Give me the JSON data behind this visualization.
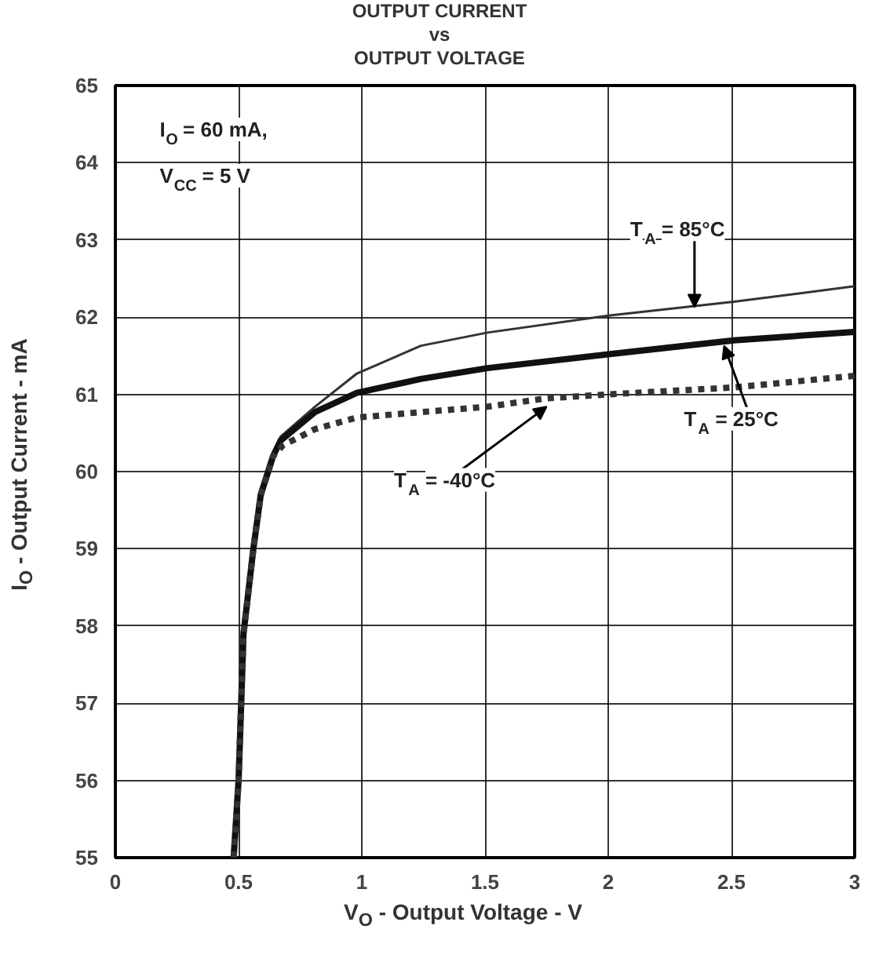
{
  "chart_data": {
    "type": "line",
    "title": "OUTPUT CURRENT\nvs\nOUTPUT VOLTAGE",
    "xlabel": "V$_{O}$ - Output Voltage - V",
    "ylabel": "I$_{O}$ - Output Current - mA",
    "xlim": [
      0,
      3
    ],
    "ylim": [
      55,
      65
    ],
    "xticks": [
      0,
      0.5,
      1,
      1.5,
      2,
      2.5,
      3
    ],
    "yticks": [
      55,
      56,
      57,
      58,
      59,
      60,
      61,
      62,
      63,
      64,
      65
    ],
    "grid": true,
    "series": [
      {
        "color": "#333333",
        "line_style": "solid",
        "x": [
          0.48,
          0.5,
          0.52,
          0.56,
          0.59,
          0.64,
          0.67,
          0.81,
          0.98,
          1.24,
          1.51,
          2.0,
          2.51,
          3.0
        ],
        "values": [
          55,
          56,
          57.9,
          59.0,
          59.7,
          60.2,
          60.45,
          60.84,
          61.27,
          61.63,
          61.8,
          62.02,
          62.2,
          62.4
        ]
      },
      {
        "color": "#111111",
        "line_style": "solid",
        "x": [
          0.48,
          0.5,
          0.52,
          0.56,
          0.59,
          0.64,
          0.67,
          0.81,
          0.98,
          1.24,
          1.51,
          2.0,
          2.51,
          3.0
        ],
        "values": [
          55,
          56,
          57.9,
          59.0,
          59.7,
          60.2,
          60.4,
          60.77,
          61.02,
          61.2,
          61.34,
          61.52,
          61.7,
          61.81
        ]
      },
      {
        "color": "#333333",
        "line_style": "dotted",
        "x": [
          0.48,
          0.5,
          0.52,
          0.56,
          0.59,
          0.64,
          0.68,
          0.81,
          0.98,
          1.24,
          1.51,
          1.75,
          2.0,
          2.51,
          3.0
        ],
        "values": [
          55,
          56,
          57.9,
          59.0,
          59.7,
          60.2,
          60.34,
          60.55,
          60.7,
          60.77,
          60.84,
          60.95,
          61.0,
          61.09,
          61.24
        ]
      }
    ],
    "annotations": [
      "I$_{O}$ = 60 mA,",
      "V$_{CC}$ = 5 V",
      {
        "text": "T$_{A}$ = 85°C",
        "x": 2.35,
        "y": 62.13
      },
      {
        "text": "T$_{A}$ = 25°C",
        "x": 2.47,
        "y": 61.63
      },
      {
        "text": "T$_{A}$ = -40°C",
        "x": 1.75,
        "y": 60.84
      }
    ]
  }
}
